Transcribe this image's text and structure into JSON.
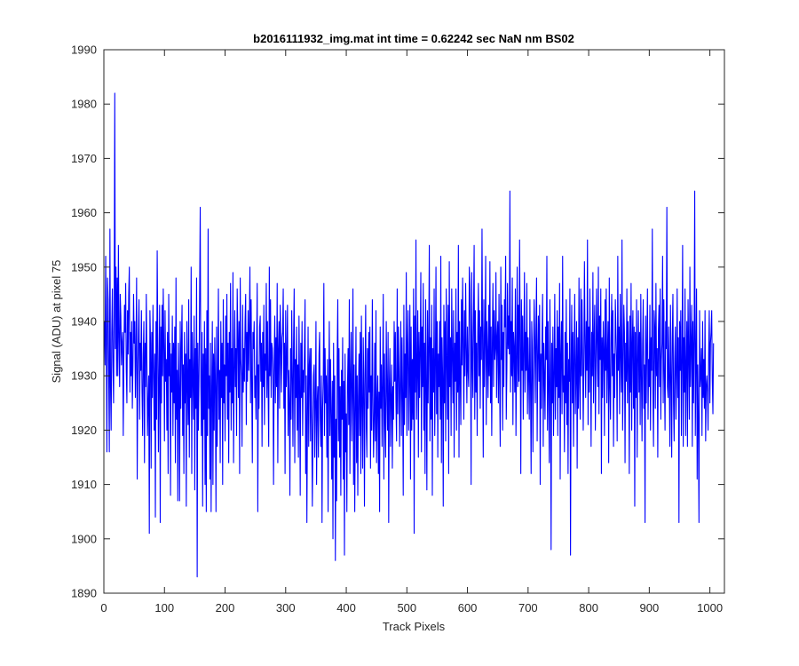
{
  "chart_data": {
    "type": "line",
    "title": "b2016111932_img.mat int time = 0.62242 sec  NaN nm BS02",
    "xlabel": "Track Pixels",
    "ylabel": "Signal (ADU) at pixel 75",
    "xlim": [
      0,
      1024
    ],
    "ylim": [
      1890,
      1990
    ],
    "xticks": [
      0,
      100,
      200,
      300,
      400,
      500,
      600,
      700,
      800,
      900,
      1000
    ],
    "yticks": [
      1890,
      1900,
      1910,
      1920,
      1930,
      1940,
      1950,
      1960,
      1970,
      1980,
      1990
    ],
    "grid": false,
    "series": [
      {
        "color": "#0000ff",
        "x_start": 1,
        "x_step": 1,
        "values": [
          1940,
          1932,
          1952,
          1936,
          1916,
          1948,
          1944,
          1930,
          1916,
          1957,
          1928,
          1920,
          1938,
          1946,
          1932,
          1925,
          1942,
          1982,
          1935,
          1950,
          1930,
          1948,
          1930,
          1954,
          1937,
          1928,
          1945,
          1941,
          1932,
          1936,
          1938,
          1919,
          1934,
          1943,
          1938,
          1947,
          1931,
          1925,
          1942,
          1934,
          1945,
          1950,
          1927,
          1938,
          1930,
          1940,
          1924,
          1932,
          1945,
          1936,
          1940,
          1926,
          1935,
          1948,
          1911,
          1930,
          1938,
          1944,
          1922,
          1936,
          1931,
          1942,
          1927,
          1919,
          1934,
          1940,
          1914,
          1936,
          1928,
          1945,
          1933,
          1919,
          1925,
          1930,
          1901,
          1942,
          1936,
          1913,
          1938,
          1926,
          1943,
          1931,
          1920,
          1934,
          1904,
          1940,
          1922,
          1953,
          1937,
          1916,
          1930,
          1943,
          1903,
          1939,
          1925,
          1943,
          1930,
          1946,
          1935,
          1918,
          1942,
          1929,
          1933,
          1920,
          1938,
          1912,
          1945,
          1930,
          1936,
          1908,
          1934,
          1927,
          1941,
          1919,
          1936,
          1925,
          1939,
          1914,
          1948,
          1922,
          1931,
          1907,
          1936,
          1928,
          1907,
          1940,
          1924,
          1936,
          1943,
          1919,
          1932,
          1912,
          1938,
          1925,
          1934,
          1906,
          1940,
          1929,
          1921,
          1944,
          1915,
          1933,
          1926,
          1950,
          1912,
          1938,
          1930,
          1922,
          1941,
          1909,
          1935,
          1924,
          1948,
          1893,
          1936,
          1920,
          1930,
          1945,
          1961,
          1928,
          1919,
          1938,
          1906,
          1934,
          1922,
          1940,
          1910,
          1935,
          1905,
          1942,
          1919,
          1957,
          1924,
          1930,
          1911,
          1936,
          1905,
          1927,
          1940,
          1910,
          1934,
          1920,
          1937,
          1928,
          1905,
          1939,
          1917,
          1930,
          1946,
          1922,
          1931,
          1914,
          1940,
          1926,
          1936,
          1910,
          1944,
          1925,
          1932,
          1918,
          1941,
          1930,
          1945,
          1922,
          1936,
          1914,
          1938,
          1927,
          1947,
          1920,
          1935,
          1925,
          1949,
          1914,
          1930,
          1942,
          1928,
          1935,
          1919,
          1946,
          1938,
          1926,
          1940,
          1912,
          1948,
          1933,
          1930,
          1917,
          1943,
          1927,
          1935,
          1929,
          1940,
          1945,
          1921,
          1938,
          1929,
          1942,
          1931,
          1939,
          1950,
          1925,
          1944,
          1928,
          1914,
          1938,
          1935,
          1940,
          1926,
          1930,
          1922,
          1934,
          1947,
          1905,
          1932,
          1924,
          1939,
          1941,
          1929,
          1936,
          1917,
          1938,
          1928,
          1943,
          1921,
          1934,
          1931,
          1947,
          1926,
          1940,
          1928,
          1917,
          1950,
          1930,
          1944,
          1926,
          1936,
          1935,
          1930,
          1910,
          1932,
          1941,
          1925,
          1937,
          1928,
          1947,
          1914,
          1935,
          1940,
          1924,
          1943,
          1936,
          1927,
          1937,
          1938,
          1946,
          1924,
          1936,
          1912,
          1942,
          1928,
          1933,
          1943,
          1919,
          1931,
          1925,
          1908,
          1935,
          1922,
          1942,
          1930,
          1917,
          1936,
          1946,
          1914,
          1933,
          1926,
          1939,
          1920,
          1932,
          1915,
          1941,
          1928,
          1908,
          1936,
          1926,
          1940,
          1919,
          1931,
          1927,
          1935,
          1944,
          1912,
          1930,
          1903,
          1923,
          1939,
          1917,
          1932,
          1935,
          1918,
          1935,
          1921,
          1906,
          1920,
          1930,
          1932,
          1915,
          1925,
          1940,
          1910,
          1925,
          1928,
          1915,
          1934,
          1938,
          1922,
          1917,
          1930,
          1903,
          1924,
          1929,
          1947,
          1919,
          1935,
          1925,
          1930,
          1915,
          1933,
          1905,
          1926,
          1940,
          1919,
          1933,
          1923,
          1911,
          1929,
          1900,
          1936,
          1915,
          1930,
          1896,
          1922,
          1907,
          1933,
          1944,
          1918,
          1935,
          1915,
          1928,
          1908,
          1931,
          1922,
          1937,
          1911,
          1929,
          1897,
          1934,
          1916,
          1923,
          1905,
          1928,
          1935,
          1921,
          1944,
          1912,
          1930,
          1938,
          1918,
          1927,
          1946,
          1910,
          1932,
          1905,
          1924,
          1939,
          1914,
          1930,
          1908,
          1926,
          1934,
          1919,
          1938,
          1912,
          1941,
          1925,
          1913,
          1937,
          1928,
          1906,
          1931,
          1943,
          1921,
          1915,
          1935,
          1924,
          1938,
          1927,
          1939,
          1913,
          1930,
          1920,
          1944,
          1926,
          1915,
          1922,
          1936,
          1918,
          1942,
          1914,
          1925,
          1930,
          1912,
          1927,
          1905,
          1939,
          1924,
          1932,
          1917,
          1929,
          1945,
          1911,
          1934,
          1922,
          1915,
          1940,
          1928,
          1920,
          1938,
          1903,
          1928,
          1935,
          1917,
          1926,
          1932,
          1913,
          1928,
          1922,
          1940,
          1929,
          1938,
          1925,
          1918,
          1946,
          1923,
          1939,
          1931,
          1917,
          1929,
          1940,
          1919,
          1937,
          1926,
          1908,
          1943,
          1921,
          1934,
          1926,
          1949,
          1919,
          1935,
          1942,
          1920,
          1930,
          1943,
          1911,
          1939,
          1920,
          1933,
          1922,
          1946,
          1901,
          1941,
          1927,
          1955,
          1922,
          1931,
          1942,
          1915,
          1938,
          1926,
          1935,
          1949,
          1916,
          1939,
          1928,
          1947,
          1920,
          1936,
          1912,
          1944,
          1929,
          1909,
          1942,
          1925,
          1935,
          1954,
          1918,
          1937,
          1922,
          1943,
          1908,
          1935,
          1927,
          1946,
          1919,
          1931,
          1950,
          1923,
          1940,
          1915,
          1934,
          1928,
          1940,
          1922,
          1952,
          1914,
          1937,
          1930,
          1906,
          1943,
          1925,
          1940,
          1918,
          1946,
          1933,
          1922,
          1943,
          1912,
          1951,
          1928,
          1937,
          1919,
          1946,
          1934,
          1925,
          1942,
          1915,
          1936,
          1929,
          1946,
          1920,
          1938,
          1927,
          1954,
          1915,
          1940,
          1930,
          1921,
          1944,
          1932,
          1948,
          1936,
          1922,
          1942,
          1930,
          1947,
          1935,
          1925,
          1939,
          1931,
          1928,
          1950,
          1946,
          1937,
          1910,
          1949,
          1933,
          1926,
          1941,
          1954,
          1922,
          1942,
          1927,
          1936,
          1919,
          1938,
          1947,
          1930,
          1942,
          1924,
          1939,
          1933,
          1957,
          1935,
          1915,
          1944,
          1928,
          1937,
          1952,
          1921,
          1940,
          1934,
          1926,
          1943,
          1930,
          1951,
          1925,
          1939,
          1919,
          1936,
          1947,
          1928,
          1942,
          1933,
          1935,
          1949,
          1926,
          1937,
          1940,
          1925,
          1945,
          1929,
          1917,
          1950,
          1933,
          1943,
          1920,
          1938,
          1928,
          1944,
          1939,
          1952,
          1922,
          1931,
          1947,
          1935,
          1941,
          1934,
          1964,
          1927,
          1940,
          1930,
          1948,
          1921,
          1938,
          1935,
          1927,
          1946,
          1919,
          1932,
          1950,
          1928,
          1943,
          1929,
          1955,
          1937,
          1912,
          1944,
          1931,
          1941,
          1922,
          1934,
          1949,
          1927,
          1938,
          1931,
          1947,
          1923,
          1937,
          1930,
          1922,
          1944,
          1928,
          1912,
          1940,
          1935,
          1916,
          1932,
          1944,
          1937,
          1925,
          1938,
          1948,
          1918,
          1933,
          1941,
          1929,
          1943,
          1910,
          1934,
          1924,
          1937,
          1945,
          1917,
          1936,
          1930,
          1922,
          1939,
          1933,
          1952,
          1920,
          1940,
          1927,
          1914,
          1944,
          1932,
          1898,
          1936,
          1925,
          1939,
          1919,
          1930,
          1945,
          1922,
          1935,
          1928,
          1942,
          1919,
          1939,
          1926,
          1947,
          1911,
          1934,
          1940,
          1923,
          1952,
          1927,
          1930,
          1916,
          1938,
          1925,
          1944,
          1921,
          1936,
          1912,
          1933,
          1929,
          1946,
          1897,
          1931,
          1943,
          1925,
          1938,
          1917,
          1934,
          1945,
          1923,
          1930,
          1940,
          1913,
          1937,
          1924,
          1948,
          1929,
          1922,
          1946,
          1930,
          1944,
          1934,
          1920,
          1932,
          1951,
          1936,
          1926,
          1940,
          1931,
          1955,
          1921,
          1939,
          1927,
          1946,
          1934,
          1917,
          1938,
          1930,
          1949,
          1925,
          1937,
          1943,
          1920,
          1932,
          1946,
          1936,
          1928,
          1950,
          1923,
          1941,
          1933,
          1946,
          1912,
          1937,
          1926,
          1940,
          1935,
          1919,
          1944,
          1931,
          1946,
          1925,
          1934,
          1940,
          1914,
          1948,
          1928,
          1922,
          1937,
          1945,
          1930,
          1942,
          1917,
          1934,
          1926,
          1944,
          1938,
          1933,
          1918,
          1952,
          1931,
          1939,
          1923,
          1945,
          1934,
          1927,
          1955,
          1920,
          1931,
          1943,
          1938,
          1914,
          1936,
          1929,
          1946,
          1925,
          1940,
          1933,
          1912,
          1941,
          1927,
          1947,
          1920,
          1936,
          1942,
          1924,
          1939,
          1906,
          1938,
          1926,
          1944,
          1915,
          1933,
          1942,
          1927,
          1938,
          1921,
          1945,
          1930,
          1918,
          1936,
          1944,
          1924,
          1932,
          1903,
          1941,
          1925,
          1936,
          1946,
          1922,
          1933,
          1928,
          1943,
          1920,
          1937,
          1931,
          1957,
          1927,
          1917,
          1942,
          1939,
          1924,
          1947,
          1930,
          1935,
          1915,
          1938,
          1943,
          1928,
          1946,
          1922,
          1933,
          1936,
          1952,
          1925,
          1944,
          1930,
          1920,
          1940,
          1935,
          1961,
          1928,
          1926,
          1939,
          1929,
          1917,
          1943,
          1930,
          1915,
          1937,
          1945,
          1925,
          1918,
          1933,
          1939,
          1922,
          1930,
          1946,
          1926,
          1937,
          1903,
          1940,
          1931,
          1942,
          1919,
          1933,
          1954,
          1917,
          1937,
          1927,
          1946,
          1919,
          1932,
          1940,
          1917,
          1944,
          1934,
          1922,
          1950,
          1928,
          1936,
          1943,
          1917,
          1940,
          1925,
          1937,
          1964,
          1919,
          1933,
          1946,
          1911,
          1932,
          1921,
          1903,
          1942,
          1928,
          1930,
          1935,
          1919,
          1940,
          1926,
          1933,
          1924,
          1942,
          1918,
          1928,
          1930,
          1927,
          1920,
          1934,
          1942,
          1925,
          1936,
          1938,
          1942,
          1929,
          1923,
          1936
        ]
      }
    ]
  },
  "colors": {
    "line": "#0000ff",
    "axes": "#262626",
    "background": "#ffffff"
  }
}
